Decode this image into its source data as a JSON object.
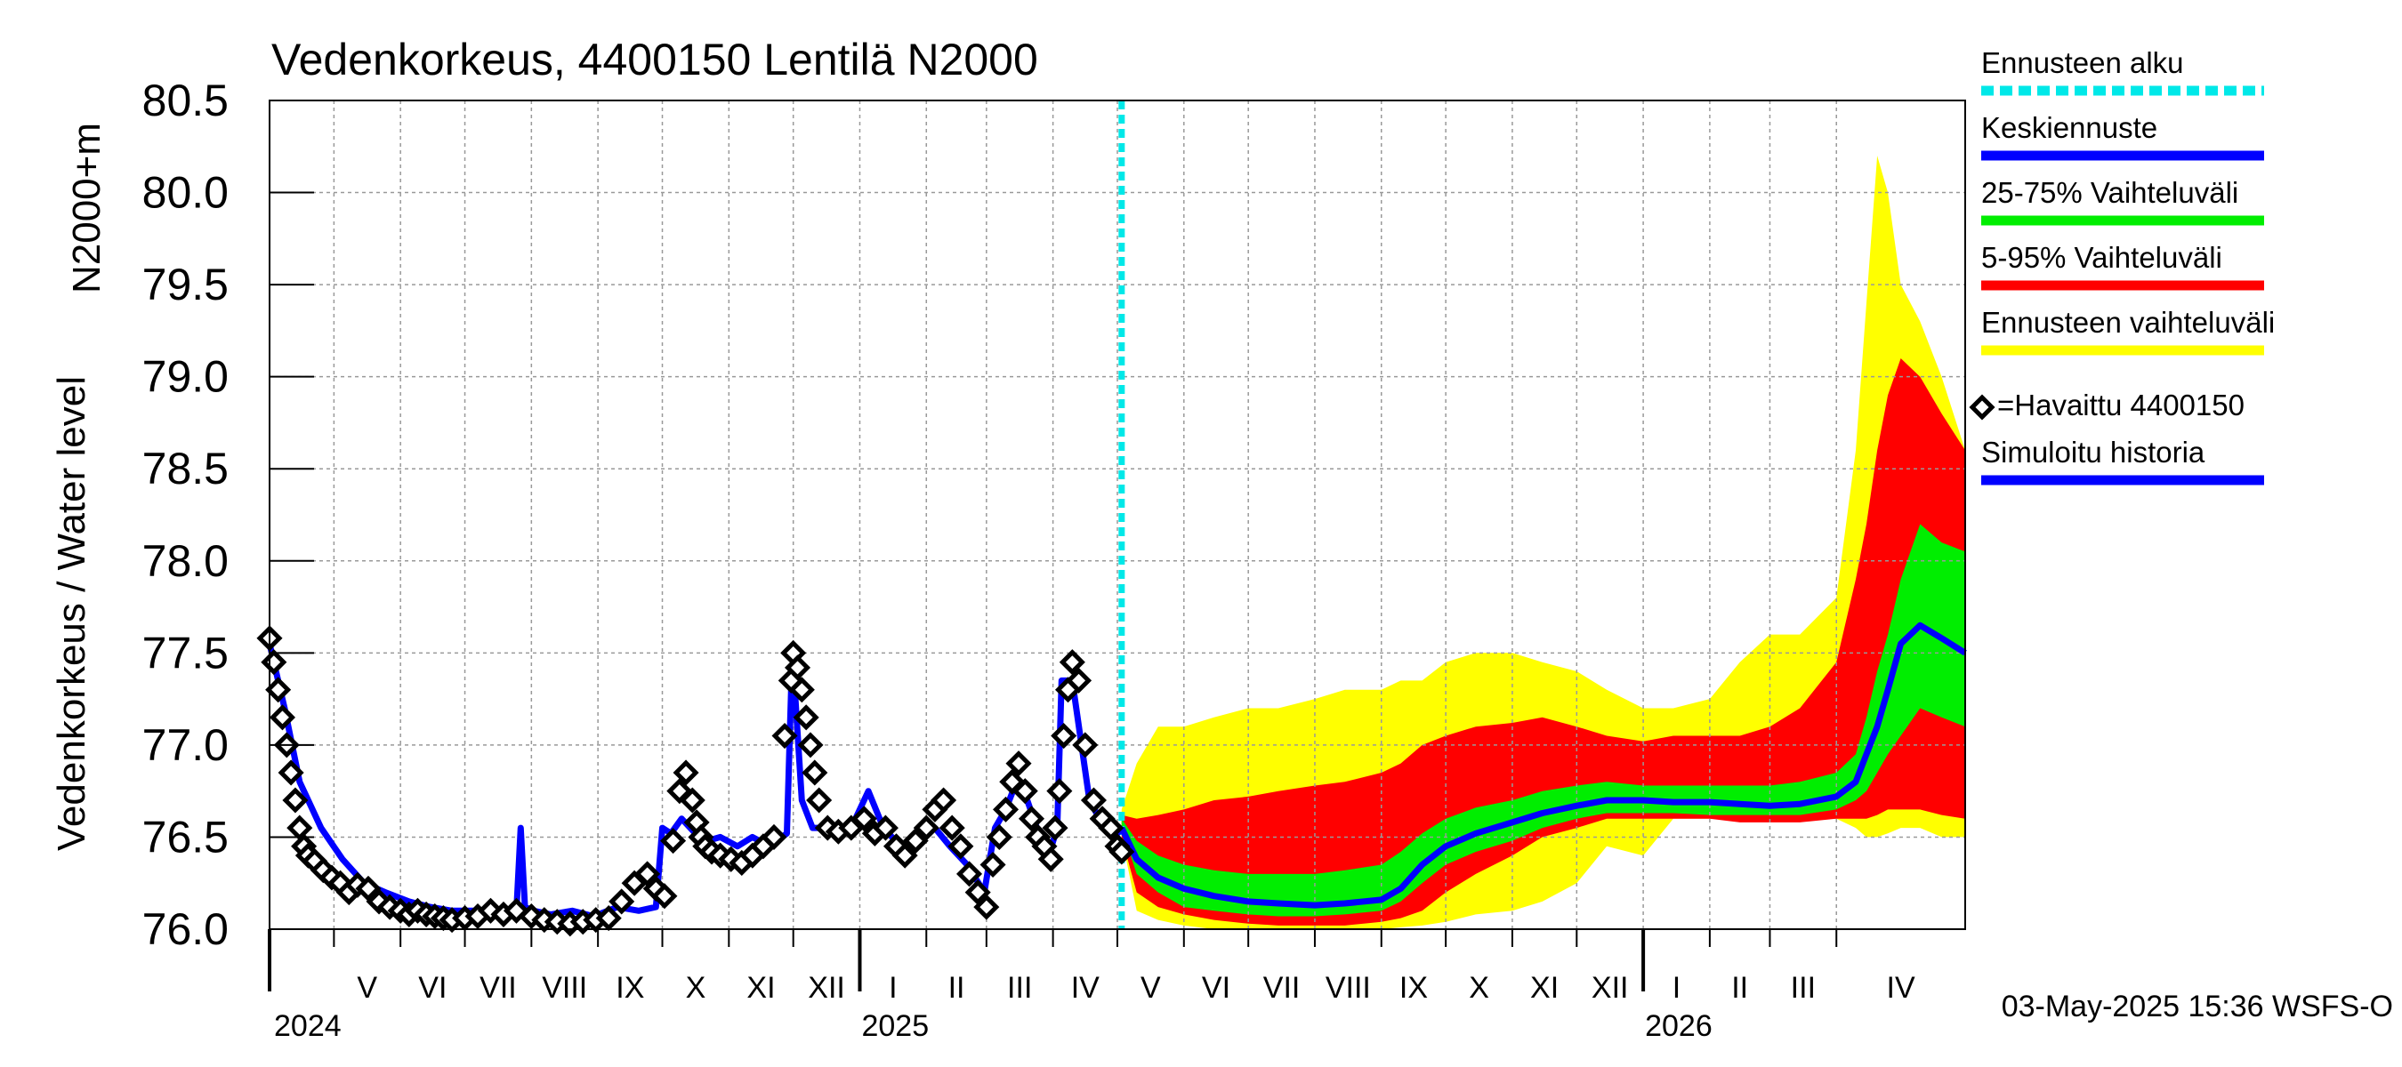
{
  "chart_data": {
    "type": "line",
    "title": "Vedenkorkeus, 4400150 Lentilä N2000",
    "ylabel_top": "N2000+m",
    "ylabel_main": "Vedenkorkeus / Water level",
    "ylim": [
      76.0,
      80.5
    ],
    "yticks": [
      "80.5",
      "80.0",
      "79.5",
      "79.0",
      "78.5",
      "78.0",
      "77.5",
      "77.0",
      "76.5",
      "76.0"
    ],
    "x_start": "2024-04-01",
    "x_end": "2026-05-31",
    "forecast_start": "2025-05-03",
    "months": [
      {
        "label": "V",
        "start": "2024-05-01"
      },
      {
        "label": "VI",
        "start": "2024-06-01"
      },
      {
        "label": "VII",
        "start": "2024-07-01"
      },
      {
        "label": "VIII",
        "start": "2024-08-01"
      },
      {
        "label": "IX",
        "start": "2024-09-01"
      },
      {
        "label": "X",
        "start": "2024-10-01"
      },
      {
        "label": "XI",
        "start": "2024-11-01"
      },
      {
        "label": "XII",
        "start": "2024-12-01"
      },
      {
        "label": "I",
        "start": "2025-01-01"
      },
      {
        "label": "II",
        "start": "2025-02-01"
      },
      {
        "label": "III",
        "start": "2025-03-01"
      },
      {
        "label": "IV",
        "start": "2025-04-01"
      },
      {
        "label": "V",
        "start": "2025-05-01"
      },
      {
        "label": "VI",
        "start": "2025-06-01"
      },
      {
        "label": "VII",
        "start": "2025-07-01"
      },
      {
        "label": "VIII",
        "start": "2025-08-01"
      },
      {
        "label": "IX",
        "start": "2025-09-01"
      },
      {
        "label": "X",
        "start": "2025-10-01"
      },
      {
        "label": "XI",
        "start": "2025-11-01"
      },
      {
        "label": "XII",
        "start": "2025-12-01"
      },
      {
        "label": "I",
        "start": "2026-01-01"
      },
      {
        "label": "II",
        "start": "2026-02-01"
      },
      {
        "label": "III",
        "start": "2026-03-01"
      },
      {
        "label": "IV",
        "start": "2026-04-01"
      }
    ],
    "years": [
      {
        "label": "2024",
        "start": "2024-04-01"
      },
      {
        "label": "2025",
        "start": "2025-01-01"
      },
      {
        "label": "2026",
        "start": "2026-01-01"
      }
    ],
    "legend": {
      "placement": "right",
      "items": [
        {
          "label": "Ennusteen alku",
          "color": "#00e8e8",
          "style": "dashed"
        },
        {
          "label": "Keskiennuste",
          "color": "#0000ff",
          "style": "line"
        },
        {
          "label": "25-75% Vaihteluväli",
          "color": "#00ee00",
          "style": "line"
        },
        {
          "label": "5-95% Vaihteluväli",
          "color": "#ff0000",
          "style": "line"
        },
        {
          "label": "Ennusteen vaihteluväli",
          "color": "#ffff00",
          "style": "line"
        },
        {
          "label": "=Havaittu 4400150",
          "color": "#000000",
          "style": "marker"
        },
        {
          "label": "Simuloitu historia",
          "color": "#0000ff",
          "style": "line"
        }
      ]
    },
    "footer": "03-May-2025 15:36 WSFS-O",
    "colors": {
      "forecast_start": "#00e8e8",
      "mean": "#0000ff",
      "band_25_75": "#00ee00",
      "band_5_95": "#ff0000",
      "band_full": "#ffff00",
      "observed": "#000000",
      "simulated": "#0000ff",
      "grid": "#999999"
    },
    "series": [
      {
        "name": "Simuloitu historia",
        "x": [
          "2024-04-01",
          "2024-04-08",
          "2024-04-15",
          "2024-04-25",
          "2024-05-05",
          "2024-05-15",
          "2024-05-25",
          "2024-06-05",
          "2024-06-15",
          "2024-06-25",
          "2024-07-05",
          "2024-07-15",
          "2024-07-25",
          "2024-07-27",
          "2024-07-29",
          "2024-08-02",
          "2024-08-10",
          "2024-08-20",
          "2024-08-30",
          "2024-09-10",
          "2024-09-20",
          "2024-09-28",
          "2024-10-01",
          "2024-10-05",
          "2024-10-10",
          "2024-10-14",
          "2024-10-18",
          "2024-10-22",
          "2024-10-28",
          "2024-11-05",
          "2024-11-12",
          "2024-11-20",
          "2024-11-28",
          "2024-11-30",
          "2024-12-02",
          "2024-12-05",
          "2024-12-10",
          "2024-12-18",
          "2024-12-28",
          "2025-01-05",
          "2025-01-12",
          "2025-01-20",
          "2025-01-28",
          "2025-02-05",
          "2025-02-12",
          "2025-02-20",
          "2025-02-28",
          "2025-03-05",
          "2025-03-10",
          "2025-03-15",
          "2025-03-20",
          "2025-03-26",
          "2025-03-30",
          "2025-04-03",
          "2025-04-05",
          "2025-04-10",
          "2025-04-18",
          "2025-04-25",
          "2025-05-01",
          "2025-05-03"
        ],
        "values": [
          77.55,
          77.2,
          76.8,
          76.55,
          76.38,
          76.25,
          76.2,
          76.15,
          76.12,
          76.1,
          76.1,
          76.08,
          76.1,
          76.55,
          76.12,
          76.1,
          76.08,
          76.1,
          76.07,
          76.12,
          76.1,
          76.12,
          76.55,
          76.52,
          76.6,
          76.55,
          76.5,
          76.48,
          76.5,
          76.45,
          76.5,
          76.45,
          76.52,
          77.3,
          77.25,
          76.7,
          76.55,
          76.55,
          76.55,
          76.75,
          76.55,
          76.45,
          76.5,
          76.55,
          76.45,
          76.35,
          76.2,
          76.55,
          76.65,
          76.8,
          76.7,
          76.5,
          76.4,
          76.55,
          77.35,
          77.35,
          76.7,
          76.55,
          76.52,
          76.55
        ]
      },
      {
        "name": "Havaittu 4400150",
        "x": [
          "2024-04-01",
          "2024-04-03",
          "2024-04-05",
          "2024-04-07",
          "2024-04-09",
          "2024-04-11",
          "2024-04-13",
          "2024-04-15",
          "2024-04-17",
          "2024-04-19",
          "2024-04-22",
          "2024-04-26",
          "2024-04-30",
          "2024-05-04",
          "2024-05-08",
          "2024-05-12",
          "2024-05-17",
          "2024-05-22",
          "2024-05-27",
          "2024-06-01",
          "2024-06-05",
          "2024-06-09",
          "2024-06-13",
          "2024-06-17",
          "2024-06-21",
          "2024-06-25",
          "2024-07-01",
          "2024-07-07",
          "2024-07-13",
          "2024-07-19",
          "2024-07-25",
          "2024-08-01",
          "2024-08-07",
          "2024-08-13",
          "2024-08-19",
          "2024-08-25",
          "2024-08-31",
          "2024-09-06",
          "2024-09-12",
          "2024-09-18",
          "2024-09-24",
          "2024-09-28",
          "2024-10-02",
          "2024-10-06",
          "2024-10-09",
          "2024-10-12",
          "2024-10-15",
          "2024-10-17",
          "2024-10-19",
          "2024-10-21",
          "2024-10-24",
          "2024-10-28",
          "2024-11-02",
          "2024-11-07",
          "2024-11-12",
          "2024-11-17",
          "2024-11-22",
          "2024-11-27",
          "2024-11-30",
          "2024-12-01",
          "2024-12-03",
          "2024-12-05",
          "2024-12-07",
          "2024-12-09",
          "2024-12-11",
          "2024-12-13",
          "2024-12-17",
          "2024-12-22",
          "2024-12-28",
          "2025-01-03",
          "2025-01-08",
          "2025-01-13",
          "2025-01-18",
          "2025-01-22",
          "2025-01-27",
          "2025-02-01",
          "2025-02-05",
          "2025-02-09",
          "2025-02-13",
          "2025-02-17",
          "2025-02-21",
          "2025-02-25",
          "2025-03-01",
          "2025-03-04",
          "2025-03-07",
          "2025-03-10",
          "2025-03-13",
          "2025-03-16",
          "2025-03-19",
          "2025-03-22",
          "2025-03-25",
          "2025-03-28",
          "2025-03-31",
          "2025-04-02",
          "2025-04-04",
          "2025-04-06",
          "2025-04-08",
          "2025-04-10",
          "2025-04-13",
          "2025-04-16",
          "2025-04-20",
          "2025-04-24",
          "2025-04-28",
          "2025-05-01",
          "2025-05-03"
        ],
        "values": [
          77.58,
          77.45,
          77.3,
          77.15,
          77.0,
          76.85,
          76.7,
          76.55,
          76.45,
          76.4,
          76.37,
          76.32,
          76.28,
          76.25,
          76.2,
          76.24,
          76.22,
          76.15,
          76.12,
          76.1,
          76.08,
          76.1,
          76.08,
          76.07,
          76.06,
          76.05,
          76.06,
          76.07,
          76.1,
          76.08,
          76.1,
          76.07,
          76.05,
          76.04,
          76.03,
          76.04,
          76.05,
          76.06,
          76.15,
          76.25,
          76.3,
          76.22,
          76.18,
          76.48,
          76.75,
          76.85,
          76.7,
          76.58,
          76.5,
          76.45,
          76.42,
          76.4,
          76.38,
          76.36,
          76.4,
          76.45,
          76.5,
          77.05,
          77.35,
          77.5,
          77.42,
          77.3,
          77.15,
          77.0,
          76.85,
          76.7,
          76.55,
          76.53,
          76.55,
          76.6,
          76.52,
          76.55,
          76.45,
          76.4,
          76.48,
          76.55,
          76.65,
          76.7,
          76.55,
          76.45,
          76.3,
          76.2,
          76.12,
          76.35,
          76.5,
          76.65,
          76.8,
          76.9,
          76.75,
          76.6,
          76.5,
          76.45,
          76.38,
          76.55,
          76.75,
          77.05,
          77.3,
          77.45,
          77.35,
          77.0,
          76.7,
          76.6,
          76.55,
          76.45,
          76.42
        ]
      },
      {
        "name": "Keskiennuste",
        "x": [
          "2025-05-03",
          "2025-05-10",
          "2025-05-20",
          "2025-06-01",
          "2025-06-15",
          "2025-07-01",
          "2025-07-15",
          "2025-08-01",
          "2025-08-15",
          "2025-09-01",
          "2025-09-10",
          "2025-09-20",
          "2025-10-01",
          "2025-10-15",
          "2025-11-01",
          "2025-11-15",
          "2025-12-01",
          "2025-12-15",
          "2026-01-01",
          "2026-01-15",
          "2026-02-01",
          "2026-02-15",
          "2026-03-01",
          "2026-03-15",
          "2026-04-01",
          "2026-04-10",
          "2026-04-15",
          "2026-04-20",
          "2026-04-25",
          "2026-05-01",
          "2026-05-10",
          "2026-05-20",
          "2026-05-31"
        ],
        "values": [
          76.55,
          76.38,
          76.28,
          76.22,
          76.18,
          76.15,
          76.14,
          76.13,
          76.14,
          76.16,
          76.22,
          76.35,
          76.45,
          76.52,
          76.58,
          76.63,
          76.67,
          76.7,
          76.7,
          76.69,
          76.69,
          76.68,
          76.67,
          76.68,
          76.72,
          76.8,
          76.95,
          77.1,
          77.3,
          77.55,
          77.65,
          77.58,
          77.5
        ]
      }
    ],
    "bands": {
      "x": [
        "2025-05-03",
        "2025-05-10",
        "2025-05-20",
        "2025-06-01",
        "2025-06-15",
        "2025-07-01",
        "2025-07-15",
        "2025-08-01",
        "2025-08-15",
        "2025-09-01",
        "2025-09-10",
        "2025-09-20",
        "2025-10-01",
        "2025-10-15",
        "2025-11-01",
        "2025-11-15",
        "2025-12-01",
        "2025-12-15",
        "2026-01-01",
        "2026-01-15",
        "2026-02-01",
        "2026-02-15",
        "2026-03-01",
        "2026-03-15",
        "2026-04-01",
        "2026-04-10",
        "2026-04-15",
        "2026-04-20",
        "2026-04-25",
        "2026-05-01",
        "2026-05-10",
        "2026-05-20",
        "2026-05-31"
      ],
      "full_min": [
        76.5,
        76.1,
        76.05,
        76.02,
        76.0,
        76.0,
        76.0,
        76.0,
        76.0,
        76.0,
        76.01,
        76.02,
        76.04,
        76.08,
        76.1,
        76.15,
        76.25,
        76.45,
        76.4,
        76.6,
        76.6,
        76.6,
        76.6,
        76.6,
        76.6,
        76.55,
        76.5,
        76.5,
        76.52,
        76.55,
        76.55,
        76.5,
        76.5
      ],
      "p5": [
        76.5,
        76.2,
        76.12,
        76.08,
        76.05,
        76.03,
        76.02,
        76.02,
        76.02,
        76.04,
        76.06,
        76.1,
        76.2,
        76.3,
        76.4,
        76.5,
        76.55,
        76.6,
        76.6,
        76.6,
        76.6,
        76.58,
        76.58,
        76.58,
        76.6,
        76.6,
        76.6,
        76.62,
        76.65,
        76.65,
        76.65,
        76.62,
        76.6
      ],
      "p25": [
        76.55,
        76.3,
        76.2,
        76.12,
        76.1,
        76.08,
        76.07,
        76.07,
        76.08,
        76.1,
        76.15,
        76.25,
        76.35,
        76.42,
        76.48,
        76.55,
        76.6,
        76.63,
        76.63,
        76.63,
        76.62,
        76.62,
        76.62,
        76.62,
        76.65,
        76.7,
        76.75,
        76.85,
        76.95,
        77.05,
        77.2,
        77.15,
        77.1
      ],
      "p75": [
        76.6,
        76.48,
        76.4,
        76.35,
        76.32,
        76.3,
        76.3,
        76.3,
        76.32,
        76.35,
        76.42,
        76.52,
        76.6,
        76.66,
        76.7,
        76.75,
        76.78,
        76.8,
        76.78,
        76.78,
        76.78,
        76.78,
        76.78,
        76.8,
        76.85,
        76.95,
        77.15,
        77.4,
        77.6,
        77.9,
        78.2,
        78.1,
        78.05
      ],
      "p95": [
        76.62,
        76.6,
        76.62,
        76.65,
        76.7,
        76.72,
        76.75,
        76.78,
        76.8,
        76.85,
        76.9,
        77.0,
        77.05,
        77.1,
        77.12,
        77.15,
        77.1,
        77.05,
        77.02,
        77.05,
        77.05,
        77.05,
        77.1,
        77.2,
        77.45,
        77.9,
        78.2,
        78.6,
        78.9,
        79.1,
        79.0,
        78.8,
        78.6
      ],
      "full_max": [
        76.65,
        76.9,
        77.1,
        77.1,
        77.15,
        77.2,
        77.2,
        77.25,
        77.3,
        77.3,
        77.35,
        77.35,
        77.45,
        77.5,
        77.5,
        77.45,
        77.4,
        77.3,
        77.2,
        77.2,
        77.25,
        77.45,
        77.6,
        77.6,
        77.8,
        78.6,
        79.4,
        80.2,
        80.0,
        79.5,
        79.3,
        79.0,
        78.6
      ]
    }
  }
}
